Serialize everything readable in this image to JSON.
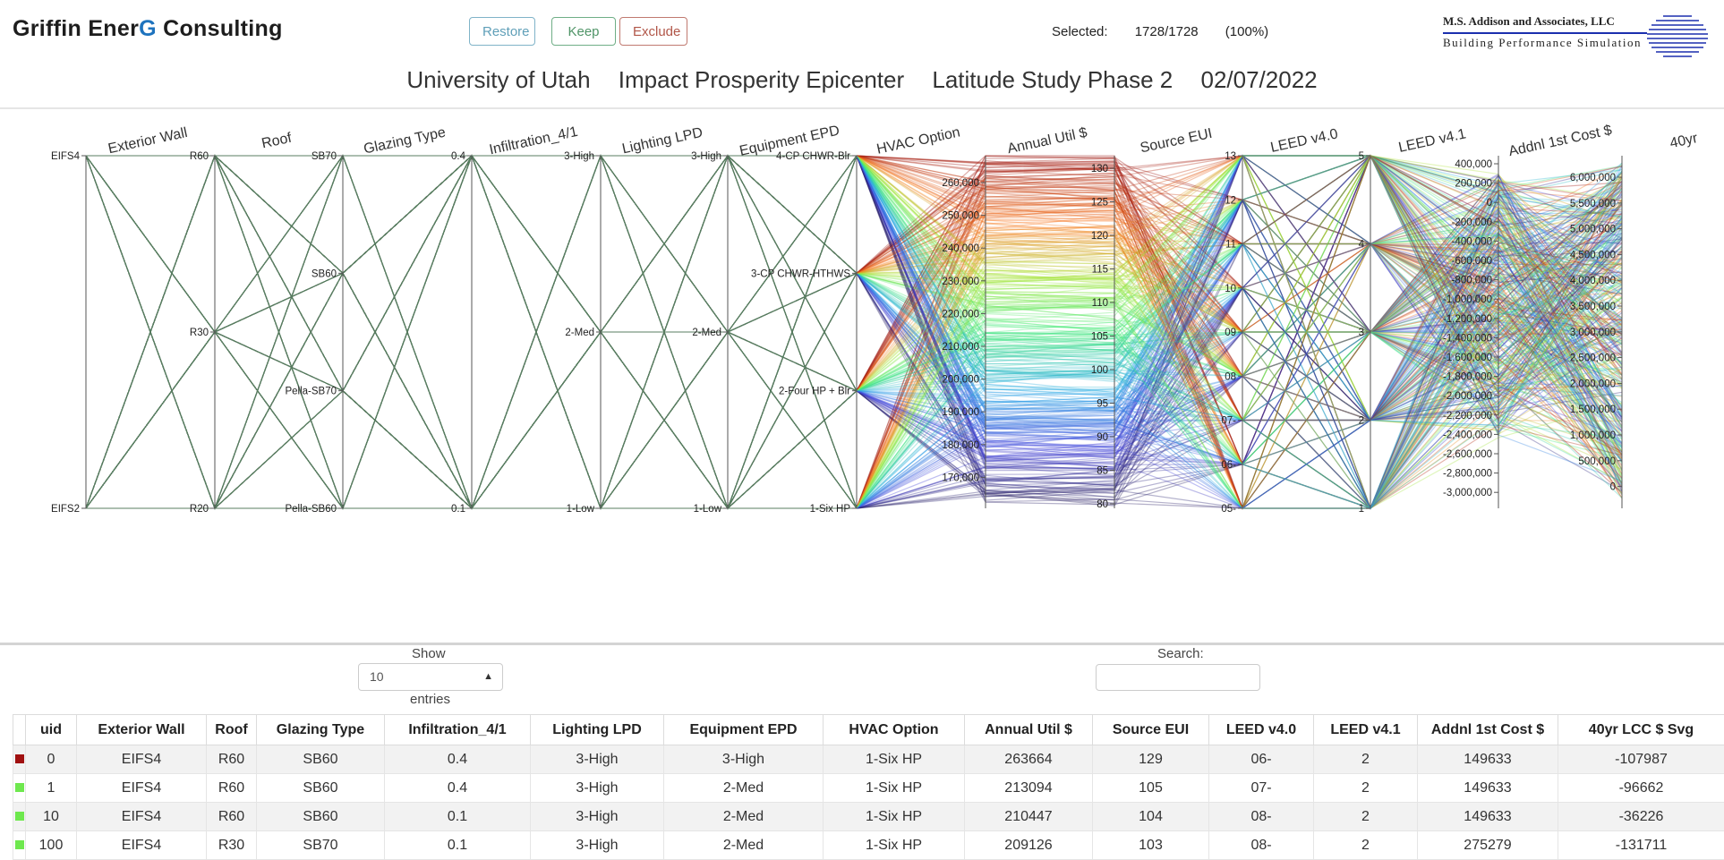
{
  "brand": {
    "prefix": "Griffin Ener",
    "accent": "G",
    "suffix": " Consulting"
  },
  "buttons": {
    "restore": "Restore",
    "keep": "Keep",
    "exclude": "Exclude"
  },
  "selection": {
    "label": "Selected:",
    "count": "1728/1728",
    "percent": "(100%)"
  },
  "logo": {
    "line1": "M.S. Addison and Associates, LLC",
    "line2": "Building Performance Simulation"
  },
  "title": {
    "org": "University of Utah",
    "project": "Impact Prosperity Epicenter",
    "study": "Latitude Study Phase 2",
    "date": "02/07/2022"
  },
  "chart_data": {
    "type": "parallel-coordinates",
    "records_selected": 1728,
    "axes": [
      {
        "name": "Exterior Wall",
        "kind": "categorical",
        "ticks": [
          "EIFS4",
          "EIFS2"
        ]
      },
      {
        "name": "Roof",
        "kind": "categorical",
        "ticks": [
          "R60",
          "R30",
          "R20"
        ]
      },
      {
        "name": "Glazing Type",
        "kind": "categorical",
        "ticks": [
          "SB70",
          "SB60",
          "Pella-SB70",
          "Pella-SB60"
        ]
      },
      {
        "name": "Infiltration_4/1",
        "kind": "categorical",
        "ticks": [
          "0.4",
          "0.1"
        ]
      },
      {
        "name": "Lighting LPD",
        "kind": "categorical",
        "ticks": [
          "3-High",
          "2-Med",
          "1-Low"
        ]
      },
      {
        "name": "Equipment EPD",
        "kind": "categorical",
        "ticks": [
          "3-High",
          "2-Med",
          "1-Low"
        ]
      },
      {
        "name": "HVAC Option",
        "kind": "categorical",
        "ticks": [
          "4-CP CHWR-Blr",
          "3-CP CHWR-HTHWS",
          "2-Four HP + Blr",
          "1-Six HP"
        ]
      },
      {
        "name": "Annual Util $",
        "kind": "numeric",
        "range": [
          160000,
          270000
        ],
        "ticks": [
          "260,000",
          "250,000",
          "240,000",
          "230,000",
          "220,000",
          "210,000",
          "200,000",
          "190,000",
          "180,000",
          "170,000"
        ]
      },
      {
        "name": "Source EUI",
        "kind": "numeric",
        "range": [
          80,
          130
        ],
        "ticks": [
          "130",
          "125",
          "120",
          "115",
          "110",
          "105",
          "100",
          "95",
          "90",
          "85",
          "80"
        ]
      },
      {
        "name": "LEED v4.0",
        "kind": "categorical",
        "ticks": [
          "13",
          "12",
          "11",
          "10",
          "09",
          "08",
          "07-",
          "06-",
          "05-"
        ]
      },
      {
        "name": "LEED v4.1",
        "kind": "categorical",
        "ticks": [
          "5",
          "4",
          "3",
          "2",
          "1"
        ]
      },
      {
        "name": "Addnl 1st Cost $",
        "kind": "numeric",
        "ticks": [
          "400,000",
          "200,000",
          "0",
          "-200,000",
          "-400,000",
          "-600,000",
          "-800,000",
          "-1,000,000",
          "-1,200,000",
          "-1,400,000",
          "-1,600,000",
          "-1,800,000",
          "-2,000,000",
          "-2,200,000",
          "-2,400,000",
          "-2,600,000",
          "-2,800,000",
          "-3,000,000"
        ]
      },
      {
        "name": "40yr",
        "kind": "numeric",
        "ticks": [
          "6,000,000",
          "5,500,000",
          "5,000,000",
          "4,500,000",
          "4,000,000",
          "3,500,000",
          "3,000,000",
          "2,500,000",
          "2,000,000",
          "1,500,000",
          "1,000,000",
          "500,000",
          "0"
        ]
      }
    ]
  },
  "table_controls": {
    "show_label": "Show",
    "entries_value": "10",
    "entries_label": "entries",
    "search_label": "Search:",
    "search_value": ""
  },
  "table": {
    "columns": [
      "",
      "uid",
      "Exterior Wall",
      "Roof",
      "Glazing Type",
      "Infiltration_4/1",
      "Lighting LPD",
      "Equipment EPD",
      "HVAC Option",
      "Annual Util $",
      "Source EUI",
      "LEED v4.0",
      "LEED v4.1",
      "Addnl 1st Cost $",
      "40yr LCC $ Svg"
    ],
    "rows": [
      {
        "swatch": "#a01010",
        "cells": [
          "0",
          "EIFS4",
          "R60",
          "SB60",
          "0.4",
          "3-High",
          "3-High",
          "1-Six HP",
          "263664",
          "129",
          "06-",
          "2",
          "149633",
          "-107987"
        ]
      },
      {
        "swatch": "#6ee84e",
        "cells": [
          "1",
          "EIFS4",
          "R60",
          "SB60",
          "0.4",
          "3-High",
          "2-Med",
          "1-Six HP",
          "213094",
          "105",
          "07-",
          "2",
          "149633",
          "-96662"
        ]
      },
      {
        "swatch": "#6ee84e",
        "cells": [
          "10",
          "EIFS4",
          "R60",
          "SB60",
          "0.1",
          "3-High",
          "2-Med",
          "1-Six HP",
          "210447",
          "104",
          "08-",
          "2",
          "149633",
          "-36226"
        ]
      },
      {
        "swatch": "#6ee84e",
        "cells": [
          "100",
          "EIFS4",
          "R30",
          "SB70",
          "0.1",
          "3-High",
          "2-Med",
          "1-Six HP",
          "209126",
          "103",
          "08-",
          "2",
          "275279",
          "-131711"
        ]
      }
    ]
  }
}
